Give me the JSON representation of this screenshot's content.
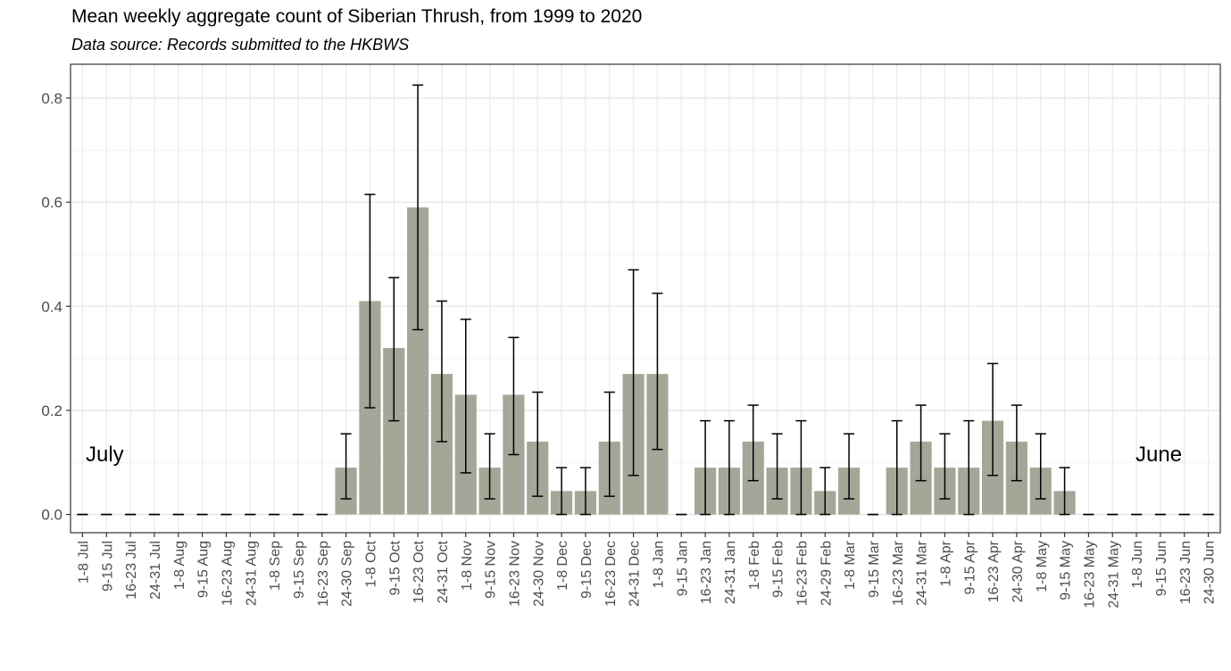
{
  "chart_data": {
    "type": "bar",
    "title": "Mean weekly aggregate count of Siberian Thrush, from 1999 to 2020",
    "subtitle": "Data source: Records submitted to the HKBWS",
    "xlabel": "",
    "ylabel": "",
    "ylim": [
      -0.035,
      0.865
    ],
    "y_ticks": [
      "0.0",
      "0.2",
      "0.4",
      "0.6",
      "0.8"
    ],
    "grid": true,
    "bar_color": "#a4a798",
    "error_bar_color": "#000000",
    "annotations": [
      "July",
      "June"
    ],
    "categories": [
      "1-8 Jul",
      "9-15 Jul",
      "16-23 Jul",
      "24-31 Jul",
      "1-8 Aug",
      "9-15 Aug",
      "16-23 Aug",
      "24-31 Aug",
      "1-8 Sep",
      "9-15 Sep",
      "16-23 Sep",
      "24-30 Sep",
      "1-8 Oct",
      "9-15 Oct",
      "16-23 Oct",
      "24-31 Oct",
      "1-8 Nov",
      "9-15 Nov",
      "16-23 Nov",
      "24-30 Nov",
      "1-8 Dec",
      "9-15 Dec",
      "16-23 Dec",
      "24-31 Dec",
      "1-8 Jan",
      "9-15 Jan",
      "16-23 Jan",
      "24-31 Jan",
      "1-8 Feb",
      "9-15 Feb",
      "16-23 Feb",
      "24-29 Feb",
      "1-8 Mar",
      "9-15 Mar",
      "16-23 Mar",
      "24-31 Mar",
      "1-8 Apr",
      "9-15 Apr",
      "16-23 Apr",
      "24-30 Apr",
      "1-8 May",
      "9-15 May",
      "16-23 May",
      "24-31 May",
      "1-8 Jun",
      "9-15 Jun",
      "16-23 Jun",
      "24-30 Jun"
    ],
    "values": [
      0,
      0,
      0,
      0,
      0,
      0,
      0,
      0,
      0,
      0,
      0,
      0.09,
      0.41,
      0.32,
      0.59,
      0.27,
      0.23,
      0.09,
      0.23,
      0.14,
      0.045,
      0.045,
      0.14,
      0.27,
      0.27,
      0,
      0.09,
      0.09,
      0.14,
      0.09,
      0.09,
      0.045,
      0.09,
      0,
      0.09,
      0.14,
      0.09,
      0.09,
      0.18,
      0.14,
      0.09,
      0.045,
      0,
      0,
      0,
      0,
      0,
      0
    ],
    "error_low": [
      0,
      0,
      0,
      0,
      0,
      0,
      0,
      0,
      0,
      0,
      0,
      0.03,
      0.205,
      0.18,
      0.355,
      0.14,
      0.08,
      0.03,
      0.115,
      0.035,
      0,
      0,
      0.035,
      0.075,
      0.125,
      0,
      0,
      0,
      0.065,
      0.03,
      0,
      0,
      0.03,
      0,
      0,
      0.065,
      0.03,
      0,
      0.075,
      0.065,
      0.03,
      0,
      0,
      0,
      0,
      0,
      0,
      0
    ],
    "error_high": [
      0,
      0,
      0,
      0,
      0,
      0,
      0,
      0,
      0,
      0,
      0,
      0.155,
      0.615,
      0.455,
      0.825,
      0.41,
      0.375,
      0.155,
      0.34,
      0.235,
      0.09,
      0.09,
      0.235,
      0.47,
      0.425,
      0,
      0.18,
      0.18,
      0.21,
      0.155,
      0.18,
      0.09,
      0.155,
      0,
      0.18,
      0.21,
      0.155,
      0.18,
      0.29,
      0.21,
      0.155,
      0.09,
      0,
      0,
      0,
      0,
      0,
      0
    ]
  }
}
